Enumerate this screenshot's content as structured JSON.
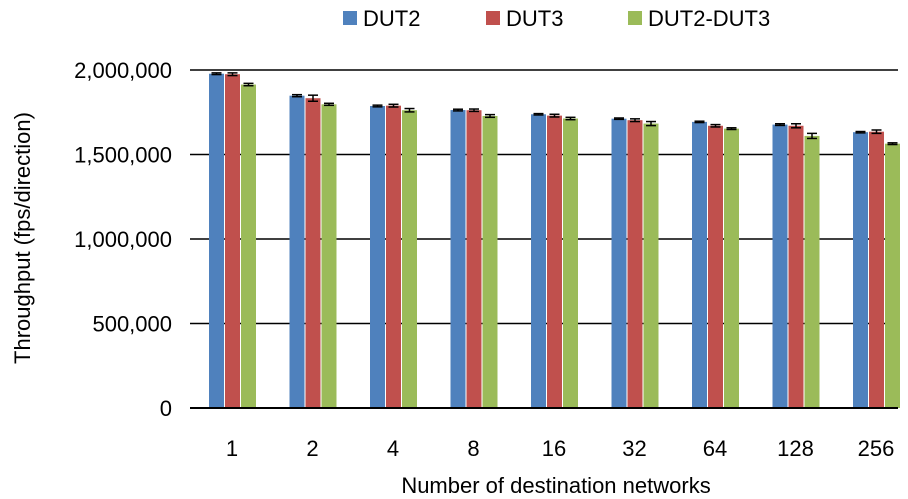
{
  "chart_data": {
    "type": "bar",
    "title": "",
    "xlabel": "Number of destination networks",
    "ylabel": "Throughput (fps/direction)",
    "categories": [
      "1",
      "2",
      "4",
      "8",
      "16",
      "32",
      "64",
      "128",
      "256"
    ],
    "ylim": [
      0,
      2000000
    ],
    "yticks": [
      0,
      500000,
      1000000,
      1500000,
      2000000
    ],
    "ytick_labels": [
      "0",
      "500,000",
      "1,000,000",
      "1,500,000",
      "2,000,000"
    ],
    "grid": true,
    "legend_position": "top",
    "series": [
      {
        "name": "DUT2",
        "color": "#4F81BD",
        "values": [
          1978000,
          1848000,
          1787000,
          1763000,
          1738000,
          1712000,
          1693000,
          1677000,
          1632000
        ],
        "errors": [
          5000,
          6000,
          5000,
          5000,
          4000,
          4000,
          4000,
          5000,
          4000
        ]
      },
      {
        "name": "DUT3",
        "color": "#C0504D",
        "values": [
          1975000,
          1833000,
          1789000,
          1762000,
          1730000,
          1703000,
          1670000,
          1670000,
          1635000
        ],
        "errors": [
          8000,
          18000,
          8000,
          7000,
          8000,
          8000,
          7000,
          12000,
          10000
        ]
      },
      {
        "name": "DUT2-DUT3",
        "color": "#9BBB59",
        "values": [
          1914000,
          1797000,
          1762000,
          1728000,
          1713000,
          1683000,
          1653000,
          1610000,
          1564000
        ],
        "errors": [
          7000,
          6000,
          10000,
          8000,
          7000,
          12000,
          5000,
          15000,
          5000
        ]
      }
    ]
  }
}
